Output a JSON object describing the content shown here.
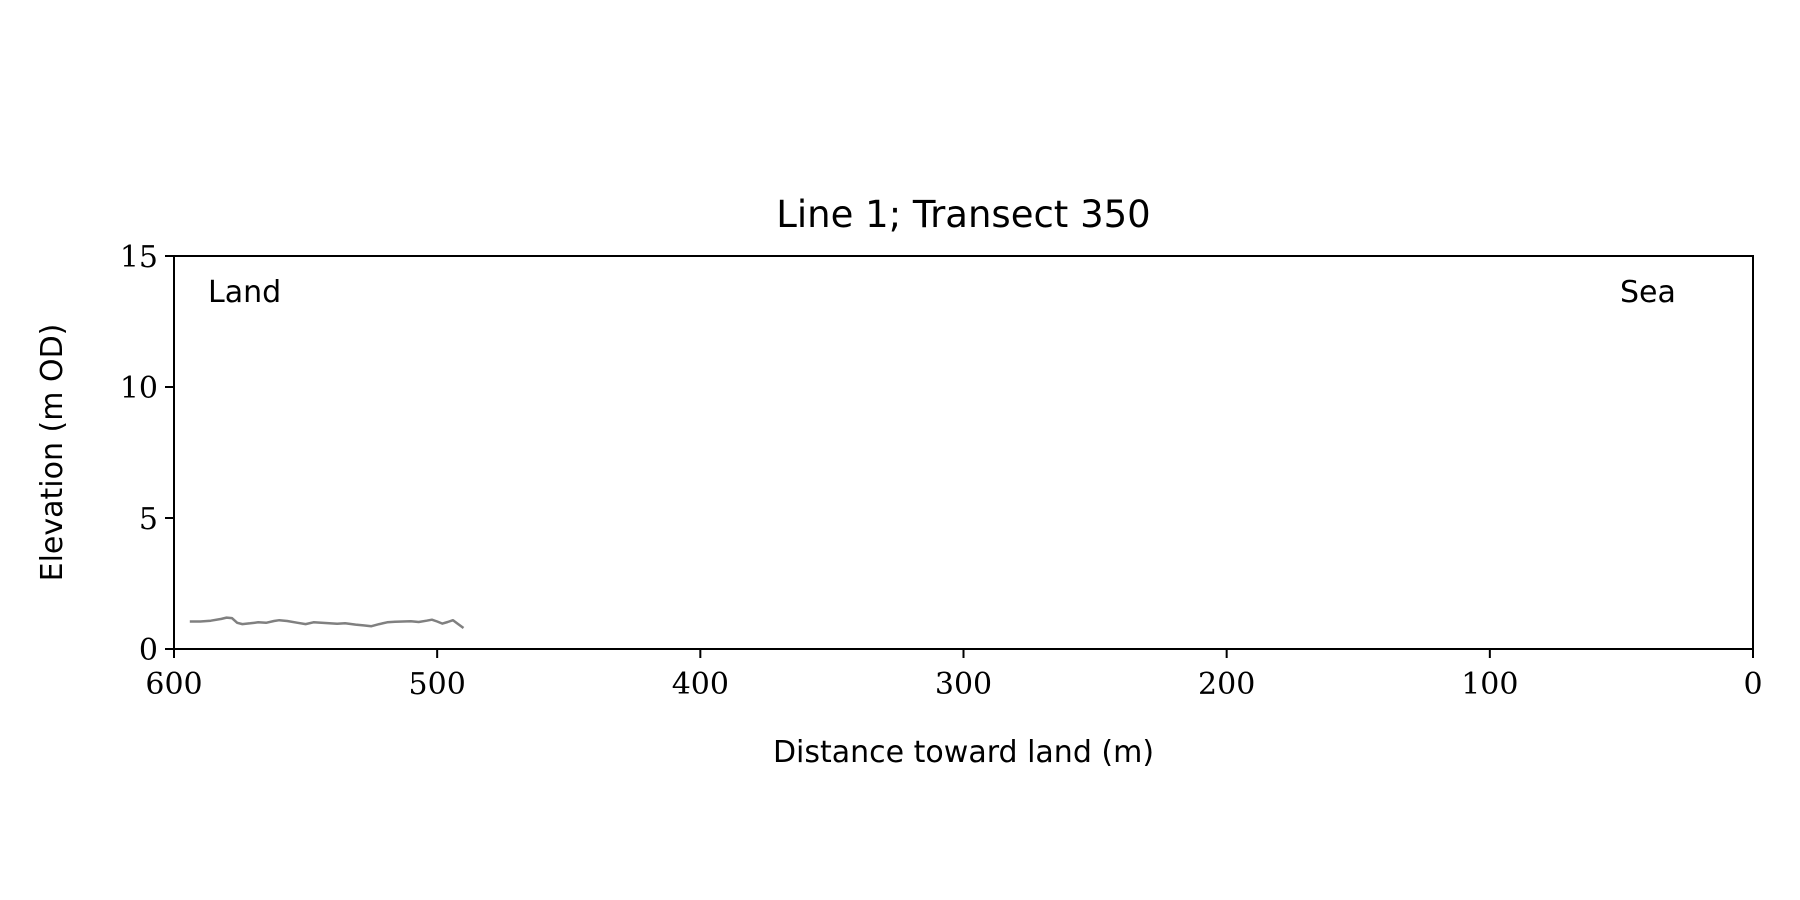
{
  "chart_data": {
    "type": "line",
    "title": "Line 1; Transect 350",
    "xlabel": "Distance toward land (m)",
    "ylabel": "Elevation (m OD)",
    "xlim": [
      600,
      0
    ],
    "ylim": [
      0,
      15
    ],
    "x_inverted": true,
    "xticks": [
      600,
      500,
      400,
      300,
      200,
      100,
      0
    ],
    "yticks": [
      0,
      5,
      10,
      15
    ],
    "grid": false,
    "annotations": [
      {
        "text": "Land",
        "position": "top-left"
      },
      {
        "text": "Sea",
        "position": "top-right"
      }
    ],
    "series": [
      {
        "color": "#808080",
        "x": [
          594,
          590,
          586,
          582,
          580,
          578,
          576,
          574,
          571,
          568,
          565,
          562,
          560,
          557,
          553,
          550,
          547,
          544,
          541,
          538,
          535,
          531,
          528,
          525,
          522,
          519,
          516,
          513,
          510,
          507,
          504,
          502,
          500,
          498,
          496,
          494,
          492,
          490
        ],
        "y": [
          1.05,
          1.05,
          1.08,
          1.15,
          1.2,
          1.18,
          1.0,
          0.95,
          0.98,
          1.02,
          1.0,
          1.07,
          1.1,
          1.07,
          1.0,
          0.95,
          1.02,
          1.0,
          0.98,
          0.96,
          0.98,
          0.93,
          0.9,
          0.87,
          0.95,
          1.02,
          1.04,
          1.05,
          1.06,
          1.03,
          1.08,
          1.12,
          1.05,
          0.97,
          1.03,
          1.1,
          0.95,
          0.8
        ]
      }
    ]
  }
}
